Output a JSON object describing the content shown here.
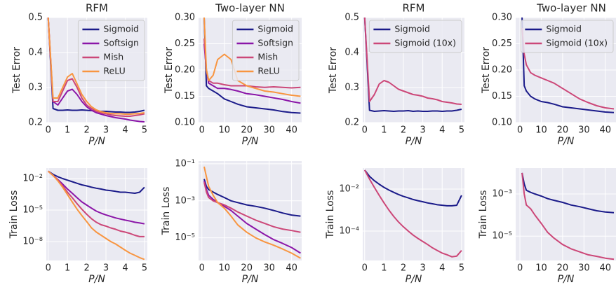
{
  "chart_data": [
    {
      "type": "line",
      "title": "RFM",
      "xlabel": "P/N",
      "ylabel": "Test Error",
      "grid": true,
      "legend": "upper right",
      "xlim": [
        -0.1,
        5.15
      ],
      "xticks": [
        0,
        1,
        2,
        3,
        4,
        5
      ],
      "ylim": [
        0.2,
        0.5
      ],
      "yticks": [
        0.2,
        0.3,
        0.4,
        0.5
      ],
      "x": [
        0,
        0.25,
        0.5,
        0.75,
        1,
        1.25,
        1.5,
        1.75,
        2,
        2.25,
        2.5,
        2.75,
        3,
        3.25,
        3.5,
        3.75,
        4,
        4.25,
        4.5,
        4.75,
        5
      ],
      "series": [
        {
          "name": "Sigmoid",
          "color": "#1b1b8a",
          "values": [
            0.5,
            0.24,
            0.235,
            0.235,
            0.236,
            0.235,
            0.235,
            0.236,
            0.235,
            0.234,
            0.233,
            0.232,
            0.232,
            0.231,
            0.23,
            0.23,
            0.229,
            0.229,
            0.23,
            0.232,
            0.235
          ]
        },
        {
          "name": "Softsign",
          "color": "#8b16a8",
          "values": [
            0.5,
            0.26,
            0.25,
            0.27,
            0.29,
            0.295,
            0.28,
            0.26,
            0.245,
            0.235,
            0.228,
            0.224,
            0.22,
            0.217,
            0.214,
            0.212,
            0.21,
            0.207,
            0.205,
            0.203,
            0.202
          ]
        },
        {
          "name": "Mish",
          "color": "#cc4778",
          "values": [
            0.5,
            0.26,
            0.26,
            0.29,
            0.32,
            0.325,
            0.3,
            0.27,
            0.25,
            0.24,
            0.232,
            0.228,
            0.225,
            0.222,
            0.22,
            0.219,
            0.218,
            0.218,
            0.22,
            0.222,
            0.225
          ]
        },
        {
          "name": "ReLU",
          "color": "#f89540",
          "values": [
            0.5,
            0.27,
            0.27,
            0.3,
            0.33,
            0.34,
            0.31,
            0.28,
            0.26,
            0.245,
            0.236,
            0.231,
            0.228,
            0.226,
            0.225,
            0.225,
            0.224,
            0.224,
            0.225,
            0.226,
            0.228
          ]
        }
      ]
    },
    {
      "type": "line",
      "title": "Two-layer NN",
      "xlabel": "P/N",
      "ylabel": "Test Error",
      "grid": true,
      "legend": "upper right",
      "xlim": [
        -1.5,
        44.5
      ],
      "xticks": [
        0,
        10,
        20,
        30,
        40
      ],
      "ylim": [
        0.1,
        0.3
      ],
      "yticks": [
        {
          "value": 0.1,
          "label": "0.10"
        },
        0.15,
        {
          "value": 0.2,
          "label": "0.20"
        },
        0.25,
        {
          "value": 0.3,
          "label": "0.30"
        }
      ],
      "x": [
        1,
        2,
        3,
        5,
        7,
        10,
        13,
        16,
        20,
        24,
        28,
        32,
        36,
        40,
        44
      ],
      "series": [
        {
          "name": "Sigmoid",
          "color": "#1b1b8a",
          "values": [
            0.3,
            0.17,
            0.165,
            0.16,
            0.155,
            0.145,
            0.14,
            0.135,
            0.13,
            0.128,
            0.126,
            0.124,
            0.121,
            0.119,
            0.118
          ]
        },
        {
          "name": "Softsign",
          "color": "#8b16a8",
          "values": [
            0.25,
            0.2,
            0.175,
            0.17,
            0.165,
            0.165,
            0.163,
            0.16,
            0.155,
            0.153,
            0.15,
            0.147,
            0.144,
            0.14,
            0.137
          ]
        },
        {
          "name": "Mish",
          "color": "#cc4778",
          "values": [
            0.26,
            0.2,
            0.18,
            0.175,
            0.175,
            0.172,
            0.17,
            0.17,
            0.17,
            0.168,
            0.167,
            0.168,
            0.167,
            0.166,
            0.167
          ]
        },
        {
          "name": "ReLU",
          "color": "#f89540",
          "values": [
            0.3,
            0.2,
            0.18,
            0.19,
            0.22,
            0.23,
            0.22,
            0.18,
            0.17,
            0.165,
            0.16,
            0.158,
            0.155,
            0.152,
            0.15
          ]
        }
      ]
    },
    {
      "type": "line",
      "title": "RFM",
      "xlabel": "P/N",
      "ylabel": "Test Error",
      "grid": true,
      "legend": "upper right",
      "xlim": [
        -0.1,
        5.15
      ],
      "xticks": [
        0,
        1,
        2,
        3,
        4,
        5
      ],
      "ylim": [
        0.2,
        0.5
      ],
      "yticks": [
        0.2,
        0.3,
        0.4,
        0.5
      ],
      "x": [
        0,
        0.25,
        0.5,
        0.75,
        1,
        1.25,
        1.5,
        1.75,
        2,
        2.25,
        2.5,
        2.75,
        3,
        3.25,
        3.5,
        3.75,
        4,
        4.25,
        4.5,
        4.75,
        5
      ],
      "series": [
        {
          "name": "Sigmoid",
          "color": "#1b1b8a",
          "values": [
            0.5,
            0.235,
            0.232,
            0.233,
            0.234,
            0.233,
            0.232,
            0.233,
            0.233,
            0.234,
            0.232,
            0.233,
            0.232,
            0.232,
            0.233,
            0.233,
            0.232,
            0.233,
            0.233,
            0.235,
            0.238
          ]
        },
        {
          "name": "Sigmoid (10x)",
          "color": "#cc4778",
          "values": [
            0.5,
            0.26,
            0.28,
            0.31,
            0.32,
            0.315,
            0.305,
            0.295,
            0.29,
            0.285,
            0.28,
            0.278,
            0.275,
            0.27,
            0.268,
            0.265,
            0.26,
            0.258,
            0.256,
            0.253,
            0.252
          ]
        }
      ]
    },
    {
      "type": "line",
      "title": "Two-layer NN",
      "xlabel": "P/N",
      "ylabel": "Test Error",
      "grid": true,
      "legend": "upper right",
      "xlim": [
        -2,
        45
      ],
      "xticks": [
        0,
        10,
        20,
        30,
        40
      ],
      "ylim": [
        0.1,
        0.3
      ],
      "yticks": [
        {
          "value": 0.1,
          "label": "0.10"
        },
        0.15,
        {
          "value": 0.2,
          "label": "0.20"
        },
        0.25,
        {
          "value": 0.3,
          "label": "0.30"
        }
      ],
      "x": [
        1,
        2,
        3,
        5,
        7,
        10,
        13,
        16,
        20,
        24,
        28,
        32,
        36,
        40,
        44
      ],
      "series": [
        {
          "name": "Sigmoid",
          "color": "#1b1b8a",
          "values": [
            0.3,
            0.17,
            0.16,
            0.15,
            0.145,
            0.14,
            0.138,
            0.135,
            0.13,
            0.128,
            0.126,
            0.124,
            0.122,
            0.12,
            0.119
          ]
        },
        {
          "name": "Sigmoid (10x)",
          "color": "#cc4778",
          "values": [
            0.28,
            0.23,
            0.21,
            0.195,
            0.19,
            0.185,
            0.18,
            0.175,
            0.165,
            0.155,
            0.145,
            0.138,
            0.132,
            0.128,
            0.126
          ]
        }
      ]
    },
    {
      "type": "line",
      "xlabel": "P/N",
      "ylabel": "Train Loss",
      "grid": true,
      "yscale": "log",
      "xlim": [
        -0.1,
        5.15
      ],
      "xticks": [
        0,
        1,
        2,
        3,
        4,
        5
      ],
      "ylim": [
        1.6e-10,
        0.1
      ],
      "yticks": [
        {
          "value": 0.01,
          "label": "10⁻²"
        },
        {
          "value": 1e-05,
          "label": "10⁻⁵"
        },
        {
          "value": 1e-08,
          "label": "10⁻⁸"
        }
      ],
      "x": [
        0,
        0.25,
        0.5,
        0.75,
        1,
        1.25,
        1.5,
        1.75,
        2,
        2.25,
        2.5,
        2.75,
        3,
        3.25,
        3.5,
        3.75,
        4,
        4.25,
        4.5,
        4.75,
        5
      ],
      "series": [
        {
          "name": "Sigmoid",
          "color": "#1b1b8a",
          "values": [
            0.05,
            0.025,
            0.015,
            0.01,
            0.007,
            0.005,
            0.0035,
            0.0025,
            0.002,
            0.0015,
            0.0012,
            0.001,
            0.0008,
            0.0007,
            0.0006,
            0.0005,
            0.0005,
            0.00045,
            0.0004,
            0.0005,
            0.0015
          ]
        },
        {
          "name": "Softsign",
          "color": "#8b16a8",
          "values": [
            0.05,
            0.02,
            0.008,
            0.003,
            0.001,
            0.0004,
            0.00015,
            6e-05,
            3e-05,
            1.5e-05,
            8e-06,
            5e-06,
            3.5e-06,
            2.5e-06,
            1.8e-06,
            1.4e-06,
            1.1e-06,
            9e-07,
            7e-07,
            6e-07,
            5e-07
          ]
        },
        {
          "name": "Mish",
          "color": "#cc4778",
          "values": [
            0.05,
            0.02,
            0.007,
            0.002,
            0.0005,
            0.00015,
            4e-05,
            1.2e-05,
            4e-06,
            1.5e-06,
            7e-07,
            4e-07,
            3e-07,
            2e-07,
            1.5e-07,
            1e-07,
            8e-08,
            6e-08,
            4e-08,
            3e-08,
            3e-08
          ]
        },
        {
          "name": "ReLU",
          "color": "#f89540",
          "values": [
            0.05,
            0.02,
            0.006,
            0.0015,
            0.0003,
            6e-05,
            1.2e-05,
            3e-06,
            8e-07,
            2e-07,
            8e-08,
            4e-08,
            2e-08,
            1e-08,
            6e-09,
            3e-09,
            1.5e-09,
            8e-10,
            5e-10,
            3e-10,
            2e-10
          ]
        }
      ]
    },
    {
      "type": "line",
      "xlabel": "P/N",
      "ylabel": "Train Loss",
      "grid": true,
      "yscale": "log",
      "xlim": [
        -1.5,
        44.5
      ],
      "xticks": [
        0,
        10,
        20,
        30,
        40
      ],
      "ylim": [
        6e-07,
        0.14
      ],
      "yticks": [
        {
          "value": 0.1,
          "label": "10⁻¹"
        },
        {
          "value": 0.001,
          "label": "10⁻³"
        },
        {
          "value": 1e-05,
          "label": "10⁻⁵"
        }
      ],
      "x": [
        1,
        2,
        3,
        5,
        7,
        10,
        13,
        16,
        20,
        24,
        28,
        32,
        36,
        40,
        44
      ],
      "series": [
        {
          "name": "Sigmoid",
          "color": "#1b1b8a",
          "values": [
            0.015,
            0.006,
            0.004,
            0.003,
            0.0022,
            0.0015,
            0.001,
            0.0008,
            0.0006,
            0.0005,
            0.0004,
            0.0003,
            0.00022,
            0.00017,
            0.00015
          ]
        },
        {
          "name": "Softsign",
          "color": "#8b16a8",
          "values": [
            0.012,
            0.004,
            0.002,
            0.0012,
            0.0008,
            0.0005,
            0.0003,
            0.00015,
            6e-05,
            3e-05,
            1.5e-05,
            8e-06,
            5e-06,
            3e-06,
            1.5e-06
          ]
        },
        {
          "name": "Mish",
          "color": "#cc4778",
          "values": [
            0.01,
            0.003,
            0.0015,
            0.001,
            0.0008,
            0.0006,
            0.0004,
            0.00025,
            0.00015,
            9e-05,
            6e-05,
            4e-05,
            3e-05,
            2.5e-05,
            2e-05
          ]
        },
        {
          "name": "ReLU",
          "color": "#f89540",
          "values": [
            0.07,
            0.02,
            0.006,
            0.002,
            0.0008,
            0.0004,
            0.00015,
            5e-05,
            2e-05,
            1e-05,
            6e-06,
            4e-06,
            2.5e-06,
            1.5e-06,
            8e-07
          ]
        }
      ]
    },
    {
      "type": "line",
      "xlabel": "P/N",
      "ylabel": "Train Loss",
      "grid": true,
      "yscale": "log",
      "xlim": [
        -0.1,
        5.15
      ],
      "xticks": [
        0,
        1,
        2,
        3,
        4,
        5
      ],
      "ylim": [
        4e-06,
        0.1
      ],
      "yticks": [
        {
          "value": 0.01,
          "label": "10⁻²"
        },
        {
          "value": 0.0001,
          "label": "10⁻⁴"
        }
      ],
      "x": [
        0,
        0.25,
        0.5,
        0.75,
        1,
        1.25,
        1.5,
        1.75,
        2,
        2.25,
        2.5,
        2.75,
        3,
        3.25,
        3.5,
        3.75,
        4,
        4.25,
        4.5,
        4.75,
        5
      ],
      "series": [
        {
          "name": "Sigmoid",
          "color": "#1b1b8a",
          "values": [
            0.08,
            0.04,
            0.025,
            0.017,
            0.012,
            0.009,
            0.007,
            0.0055,
            0.0045,
            0.0038,
            0.0032,
            0.0028,
            0.0025,
            0.0022,
            0.002,
            0.0018,
            0.0017,
            0.0016,
            0.0016,
            0.0017,
            0.005
          ]
        },
        {
          "name": "Sigmoid (10x)",
          "color": "#cc4778",
          "values": [
            0.08,
            0.03,
            0.012,
            0.005,
            0.0022,
            0.001,
            0.0005,
            0.00027,
            0.00016,
            0.0001,
            6.5e-05,
            4.5e-05,
            3.2e-05,
            2.3e-05,
            1.6e-05,
            1.2e-05,
            9e-06,
            7.5e-06,
            6e-06,
            6.5e-06,
            1.2e-05
          ]
        }
      ]
    },
    {
      "type": "line",
      "xlabel": "P/N",
      "ylabel": "Train Loss",
      "grid": true,
      "yscale": "log",
      "xlim": [
        -2,
        45
      ],
      "xticks": [
        0,
        10,
        20,
        30,
        40
      ],
      "ylim": [
        7e-07,
        0.017
      ],
      "yticks": [
        {
          "value": 0.001,
          "label": "10⁻³"
        },
        {
          "value": 1e-05,
          "label": "10⁻⁵"
        }
      ],
      "x": [
        1,
        2,
        3,
        5,
        7,
        10,
        13,
        16,
        20,
        24,
        28,
        32,
        36,
        40,
        44
      ],
      "series": [
        {
          "name": "Sigmoid",
          "color": "#1b1b8a",
          "values": [
            0.01,
            0.003,
            0.0015,
            0.0012,
            0.001,
            0.0008,
            0.0006,
            0.0005,
            0.0004,
            0.0003,
            0.00025,
            0.0002,
            0.00016,
            0.00014,
            0.00013
          ]
        },
        {
          "name": "Sigmoid (10x)",
          "color": "#cc4778",
          "values": [
            0.01,
            0.001,
            0.0003,
            0.0002,
            0.0001,
            4e-05,
            1.5e-05,
            8e-06,
            4e-06,
            2.5e-06,
            1.8e-06,
            1.3e-06,
            1.1e-06,
            9e-07,
            8e-07
          ]
        }
      ]
    }
  ]
}
